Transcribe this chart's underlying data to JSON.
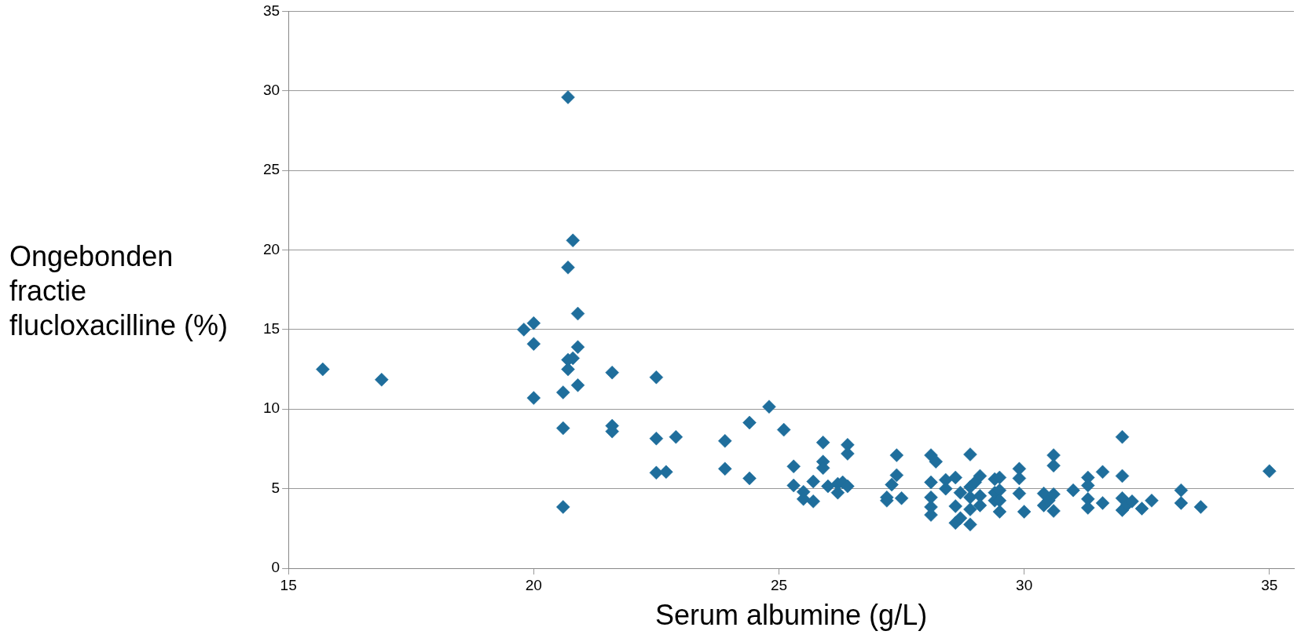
{
  "chart_data": {
    "type": "scatter",
    "xlabel": "Serum albumine (g/L)",
    "ylabel": "Ongebonden fractie flucloxacilline (%)",
    "xlim": [
      15,
      35.5
    ],
    "xticks": [
      15,
      20,
      25,
      30,
      35
    ],
    "ylim": [
      0,
      35
    ],
    "yticks": [
      0,
      5,
      10,
      15,
      20,
      25,
      30,
      35
    ],
    "grid": "y",
    "legend": false,
    "marker": "diamond",
    "series": [
      {
        "color": "#1f6e9c",
        "x": [
          15.7,
          16.9,
          19.8,
          20.0,
          20.0,
          20.0,
          20.6,
          20.6,
          20.6,
          20.7,
          20.8,
          20.7,
          20.9,
          20.9,
          20.8,
          20.7,
          20.7,
          20.9,
          21.6,
          21.6,
          21.6,
          22.5,
          22.5,
          22.5,
          22.7,
          22.9,
          23.9,
          23.9,
          24.4,
          24.4,
          24.8,
          25.1,
          25.3,
          25.3,
          25.5,
          25.5,
          25.7,
          25.7,
          25.9,
          25.9,
          25.9,
          26.0,
          26.2,
          26.2,
          26.3,
          26.4,
          26.4,
          26.4,
          27.2,
          27.2,
          27.3,
          27.4,
          27.4,
          27.5,
          28.1,
          28.1,
          28.1,
          28.1,
          28.1,
          28.2,
          28.4,
          28.4,
          28.6,
          28.6,
          28.6,
          28.7,
          28.7,
          28.9,
          28.9,
          28.9,
          28.9,
          28.9,
          29.0,
          29.1,
          29.1,
          29.1,
          29.4,
          29.4,
          29.4,
          29.5,
          29.5,
          29.5,
          29.5,
          29.9,
          29.9,
          29.9,
          30.0,
          30.4,
          30.4,
          30.5,
          30.6,
          30.6,
          30.6,
          30.6,
          31.0,
          31.3,
          31.3,
          31.3,
          31.3,
          31.6,
          31.6,
          32.0,
          32.0,
          32.0,
          32.0,
          32.1,
          32.2,
          32.4,
          32.6,
          33.2,
          33.2,
          33.6,
          35.0
        ],
        "values": [
          12.5,
          11.85,
          15.0,
          15.4,
          14.1,
          10.7,
          11.05,
          8.8,
          3.85,
          29.6,
          20.6,
          18.9,
          16.0,
          13.9,
          13.2,
          13.1,
          12.5,
          11.5,
          12.3,
          8.95,
          8.6,
          12.0,
          8.15,
          6.0,
          6.05,
          8.25,
          8.0,
          6.25,
          9.15,
          5.65,
          10.15,
          8.7,
          6.4,
          5.2,
          4.8,
          4.35,
          4.2,
          5.45,
          7.9,
          6.7,
          6.3,
          5.15,
          5.3,
          4.75,
          5.4,
          7.75,
          7.2,
          5.15,
          4.25,
          4.45,
          5.25,
          7.1,
          5.85,
          4.4,
          7.1,
          5.4,
          4.45,
          3.85,
          3.35,
          6.7,
          5.55,
          5.0,
          5.7,
          3.9,
          2.85,
          4.75,
          3.15,
          7.15,
          5.1,
          4.45,
          3.7,
          2.75,
          5.4,
          4.55,
          3.95,
          5.8,
          5.6,
          4.75,
          4.25,
          5.7,
          4.9,
          4.25,
          3.55,
          6.25,
          5.65,
          4.7,
          3.55,
          4.7,
          3.95,
          4.25,
          7.1,
          6.45,
          4.65,
          3.6,
          4.9,
          5.7,
          5.2,
          4.35,
          3.8,
          6.05,
          4.1,
          8.25,
          5.8,
          4.4,
          3.65,
          4.0,
          4.2,
          3.75,
          4.25,
          4.9,
          4.1,
          3.85,
          6.1
        ]
      }
    ]
  }
}
